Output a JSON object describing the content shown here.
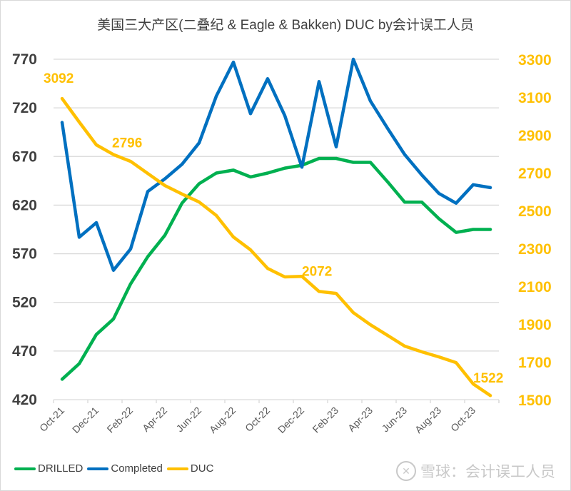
{
  "chart_data": {
    "type": "line",
    "title": "美国三大产区(二叠纪 & Eagle &  Bakken) DUC by会计误工人员",
    "x": [
      "Oct-21",
      "Nov-21",
      "Dec-21",
      "Jan-22",
      "Feb-22",
      "Mar-22",
      "Apr-22",
      "May-22",
      "Jun-22",
      "Jul-22",
      "Aug-22",
      "Sep-22",
      "Oct-22",
      "Nov-22",
      "Dec-22",
      "Jan-23",
      "Feb-23",
      "Mar-23",
      "Apr-23",
      "May-23",
      "Jun-23",
      "Jul-23",
      "Aug-23",
      "Sep-23",
      "Oct-23",
      "Nov-23"
    ],
    "xtick_labels": [
      "Oct-21",
      "Dec-21",
      "Feb-22",
      "Apr-22",
      "Jun-22",
      "Aug-22",
      "Oct-22",
      "Dec-22",
      "Feb-23",
      "Apr-23",
      "Jun-23",
      "Aug-23",
      "Oct-23"
    ],
    "left_axis": {
      "ylim": [
        420,
        770
      ],
      "ticks": [
        770,
        720,
        670,
        620,
        570,
        520,
        470,
        420
      ]
    },
    "right_axis": {
      "ylim": [
        1500,
        3300
      ],
      "ticks": [
        3300,
        3100,
        2900,
        2700,
        2500,
        2300,
        2100,
        1900,
        1700,
        1500
      ]
    },
    "grid": true,
    "legend_position": "bottom-left",
    "series": [
      {
        "name": "DRILLED",
        "axis": "left",
        "color": "#00b050",
        "values": [
          441,
          457,
          487,
          503,
          539,
          567,
          589,
          622,
          642,
          653,
          656,
          649,
          653,
          658,
          661,
          668,
          668,
          664,
          664,
          644,
          623,
          623,
          606,
          592,
          595,
          595
        ]
      },
      {
        "name": "Completed",
        "axis": "left",
        "color": "#0070c0",
        "values": [
          705,
          587,
          602,
          553,
          575,
          634,
          647,
          662,
          684,
          732,
          767,
          714,
          750,
          712,
          659,
          747,
          680,
          770,
          727,
          699,
          672,
          651,
          632,
          622,
          641,
          638
        ]
      },
      {
        "name": "DUC",
        "axis": "right",
        "color": "#ffc000",
        "values": [
          3092,
          2968,
          2847,
          2796,
          2760,
          2696,
          2632,
          2587,
          2545,
          2474,
          2360,
          2292,
          2194,
          2149,
          2152,
          2072,
          2062,
          1960,
          1896,
          1840,
          1783,
          1753,
          1726,
          1696,
          1583,
          1522
        ]
      }
    ],
    "annotations": [
      {
        "series": "DUC",
        "index": 0,
        "text": "3092"
      },
      {
        "series": "DUC",
        "index": 3,
        "text": "2796"
      },
      {
        "series": "DUC",
        "index": 15,
        "text": "2072"
      },
      {
        "series": "DUC",
        "index": 25,
        "text": "1522"
      }
    ]
  },
  "legend": [
    {
      "label": "DRILLED",
      "color": "#00b050"
    },
    {
      "label": "Completed",
      "color": "#0070c0"
    },
    {
      "label": "DUC",
      "color": "#ffc000"
    }
  ],
  "watermark": {
    "text": "雪球：会计误工人员"
  }
}
